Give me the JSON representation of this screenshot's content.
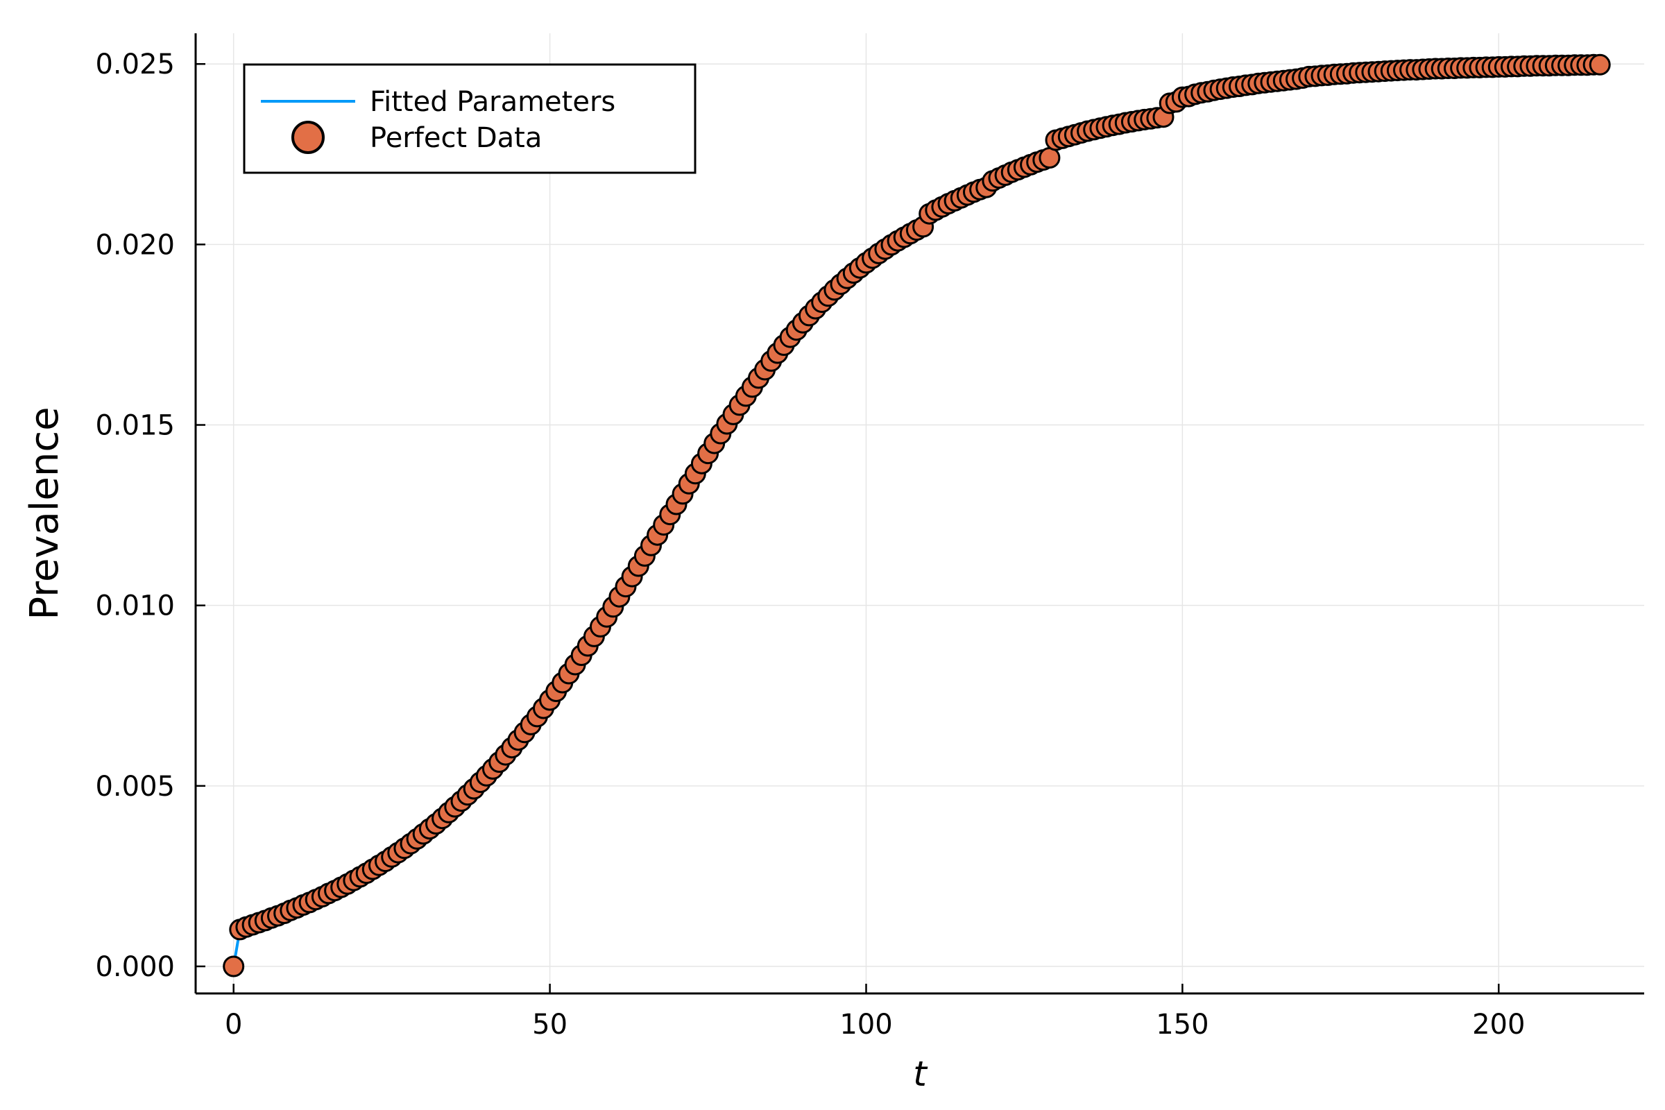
{
  "chart_data": {
    "type": "line",
    "title": "",
    "xlabel": "t",
    "ylabel": "Prevalence",
    "xlim": [
      -6,
      223
    ],
    "ylim": [
      -0.00075,
      0.02585
    ],
    "xticks": [
      0,
      50,
      100,
      150,
      200
    ],
    "xtick_labels": [
      "0",
      "50",
      "100",
      "150",
      "200"
    ],
    "yticks": [
      0.0,
      0.005,
      0.01,
      0.015,
      0.02,
      0.025
    ],
    "ytick_labels": [
      "0.000",
      "0.005",
      "0.010",
      "0.015",
      "0.020",
      "0.025"
    ],
    "grid": true,
    "legend_position": "top-left",
    "series": [
      {
        "name": "Fitted Parameters",
        "kind": "line",
        "color": "#009af9",
        "x": [
          0,
          1,
          2,
          4,
          6,
          8,
          10,
          12,
          14,
          16,
          18,
          20,
          22,
          24,
          26,
          28,
          30,
          32,
          34,
          36,
          38,
          40,
          42,
          44,
          46,
          48,
          50,
          52,
          54,
          56,
          58,
          60,
          62,
          64,
          66,
          68,
          70,
          72,
          74,
          76,
          78,
          80,
          82,
          84,
          86,
          88,
          90,
          92,
          94,
          96,
          98,
          100,
          102,
          104,
          106,
          108,
          110,
          112,
          114,
          116,
          118,
          120,
          122,
          124,
          126,
          128,
          130,
          132,
          134,
          136,
          138,
          140,
          142,
          144,
          146,
          148,
          150,
          152,
          154,
          156,
          158,
          160,
          162,
          164,
          166,
          168,
          170,
          172,
          174,
          176,
          178,
          180,
          182,
          184,
          186,
          188,
          190,
          192,
          194,
          196,
          198,
          200,
          202,
          204,
          206,
          208,
          210,
          212,
          214,
          216
        ],
        "y": [
          0.0,
          0.00102,
          0.00109,
          0.00121,
          0.00134,
          0.00147,
          0.00162,
          0.00177,
          0.00193,
          0.0021,
          0.00228,
          0.00248,
          0.00269,
          0.00291,
          0.00315,
          0.0034,
          0.00367,
          0.00395,
          0.00426,
          0.00458,
          0.00492,
          0.00528,
          0.00566,
          0.00606,
          0.00648,
          0.00692,
          0.00738,
          0.00786,
          0.00836,
          0.00888,
          0.00941,
          0.00996,
          0.01052,
          0.01109,
          0.01166,
          0.01223,
          0.0128,
          0.01337,
          0.01393,
          0.01449,
          0.01503,
          0.01555,
          0.01605,
          0.01653,
          0.01699,
          0.01743,
          0.01783,
          0.01822,
          0.01857,
          0.0189,
          0.01921,
          0.01949,
          0.01975,
          0.01999,
          0.0202,
          0.0204,
          0.02085,
          0.02104,
          0.02121,
          0.02137,
          0.02152,
          0.02176,
          0.02192,
          0.02207,
          0.02221,
          0.02234,
          0.02289,
          0.02299,
          0.02309,
          0.02318,
          0.02326,
          0.02333,
          0.0234,
          0.02346,
          0.02351,
          0.02391,
          0.02408,
          0.02416,
          0.02423,
          0.0243,
          0.02436,
          0.02441,
          0.02446,
          0.0245,
          0.02454,
          0.02458,
          0.02465,
          0.02468,
          0.02471,
          0.02473,
          0.02476,
          0.02478,
          0.0248,
          0.02482,
          0.02484,
          0.02485,
          0.02487,
          0.02488,
          0.02489,
          0.0249,
          0.02491,
          0.02493,
          0.02494,
          0.02495,
          0.02496,
          0.02496,
          0.02497,
          0.02497,
          0.02498,
          0.02498
        ]
      },
      {
        "name": "Perfect Data",
        "kind": "scatter",
        "color": "#e26f46",
        "stroke": "#000000",
        "x": [
          0,
          1,
          2,
          3,
          4,
          5,
          6,
          7,
          8,
          9,
          10,
          11,
          12,
          13,
          14,
          15,
          16,
          17,
          18,
          19,
          20,
          21,
          22,
          23,
          24,
          25,
          26,
          27,
          28,
          29,
          30,
          31,
          32,
          33,
          34,
          35,
          36,
          37,
          38,
          39,
          40,
          41,
          42,
          43,
          44,
          45,
          46,
          47,
          48,
          49,
          50,
          51,
          52,
          53,
          54,
          55,
          56,
          57,
          58,
          59,
          60,
          61,
          62,
          63,
          64,
          65,
          66,
          67,
          68,
          69,
          70,
          71,
          72,
          73,
          74,
          75,
          76,
          77,
          78,
          79,
          80,
          81,
          82,
          83,
          84,
          85,
          86,
          87,
          88,
          89,
          90,
          91,
          92,
          93,
          94,
          95,
          96,
          97,
          98,
          99,
          100,
          101,
          102,
          103,
          104,
          105,
          106,
          107,
          108,
          109,
          110,
          111,
          112,
          113,
          114,
          115,
          116,
          117,
          118,
          119,
          120,
          121,
          122,
          123,
          124,
          125,
          126,
          127,
          128,
          129,
          130,
          131,
          132,
          133,
          134,
          135,
          136,
          137,
          138,
          139,
          140,
          141,
          142,
          143,
          144,
          145,
          146,
          147,
          148,
          149,
          150,
          151,
          152,
          153,
          154,
          155,
          156,
          157,
          158,
          159,
          160,
          161,
          162,
          163,
          164,
          165,
          166,
          167,
          168,
          169,
          170,
          171,
          172,
          173,
          174,
          175,
          176,
          177,
          178,
          179,
          180,
          181,
          182,
          183,
          184,
          185,
          186,
          187,
          188,
          189,
          190,
          191,
          192,
          193,
          194,
          195,
          196,
          197,
          198,
          199,
          200,
          201,
          202,
          203,
          204,
          205,
          206,
          207,
          208,
          209,
          210,
          211,
          212,
          213,
          214,
          215,
          216
        ],
        "y": [
          0.0,
          0.00102,
          0.00109,
          0.00115,
          0.00121,
          0.00127,
          0.00134,
          0.0014,
          0.00147,
          0.00155,
          0.00162,
          0.0017,
          0.00177,
          0.00185,
          0.00193,
          0.00202,
          0.0021,
          0.00219,
          0.00228,
          0.00238,
          0.00248,
          0.00258,
          0.00269,
          0.0028,
          0.00291,
          0.00303,
          0.00315,
          0.00327,
          0.0034,
          0.00353,
          0.00367,
          0.00381,
          0.00395,
          0.0041,
          0.00426,
          0.00442,
          0.00458,
          0.00475,
          0.00492,
          0.0051,
          0.00528,
          0.00547,
          0.00566,
          0.00586,
          0.00606,
          0.00627,
          0.00648,
          0.0067,
          0.00692,
          0.00715,
          0.00738,
          0.00762,
          0.00786,
          0.00811,
          0.00836,
          0.00862,
          0.00888,
          0.00914,
          0.00941,
          0.00968,
          0.00996,
          0.01024,
          0.01052,
          0.0108,
          0.01109,
          0.01137,
          0.01166,
          0.01195,
          0.01223,
          0.01252,
          0.0128,
          0.01309,
          0.01337,
          0.01365,
          0.01393,
          0.01421,
          0.01449,
          0.01476,
          0.01503,
          0.01529,
          0.01555,
          0.0158,
          0.01605,
          0.0163,
          0.01653,
          0.01677,
          0.01699,
          0.01721,
          0.01743,
          0.01763,
          0.01783,
          0.01803,
          0.01822,
          0.0184,
          0.01857,
          0.01874,
          0.0189,
          0.01906,
          0.01921,
          0.01935,
          0.01949,
          0.01962,
          0.01975,
          0.01987,
          0.01999,
          0.0201,
          0.0202,
          0.0203,
          0.0204,
          0.02049,
          0.02085,
          0.02095,
          0.02104,
          0.02113,
          0.02121,
          0.02129,
          0.02137,
          0.02145,
          0.02152,
          0.02158,
          0.02176,
          0.02184,
          0.02192,
          0.022,
          0.02207,
          0.02214,
          0.02221,
          0.02228,
          0.02234,
          0.0224,
          0.02289,
          0.02294,
          0.02299,
          0.02304,
          0.02309,
          0.02314,
          0.02318,
          0.02322,
          0.02326,
          0.0233,
          0.02333,
          0.02337,
          0.0234,
          0.02343,
          0.02346,
          0.02348,
          0.02351,
          0.02353,
          0.02391,
          0.02395,
          0.02408,
          0.0241,
          0.02416,
          0.0242,
          0.02423,
          0.02427,
          0.0243,
          0.02433,
          0.02436,
          0.02438,
          0.02441,
          0.02443,
          0.02446,
          0.02448,
          0.0245,
          0.02452,
          0.02454,
          0.02456,
          0.02458,
          0.02461,
          0.02465,
          0.02466,
          0.02468,
          0.02469,
          0.02471,
          0.02472,
          0.02473,
          0.02475,
          0.02476,
          0.02477,
          0.02478,
          0.02479,
          0.0248,
          0.02481,
          0.02482,
          0.02483,
          0.02484,
          0.02484,
          0.02485,
          0.02486,
          0.02487,
          0.02487,
          0.02488,
          0.02488,
          0.02489,
          0.02489,
          0.0249,
          0.0249,
          0.02491,
          0.02491,
          0.02492,
          0.02492,
          0.02493,
          0.02493,
          0.02494,
          0.02494,
          0.02495,
          0.02495,
          0.02495,
          0.02496,
          0.02496,
          0.02496,
          0.02497,
          0.02497,
          0.02497,
          0.02498,
          0.02498
        ]
      }
    ]
  }
}
